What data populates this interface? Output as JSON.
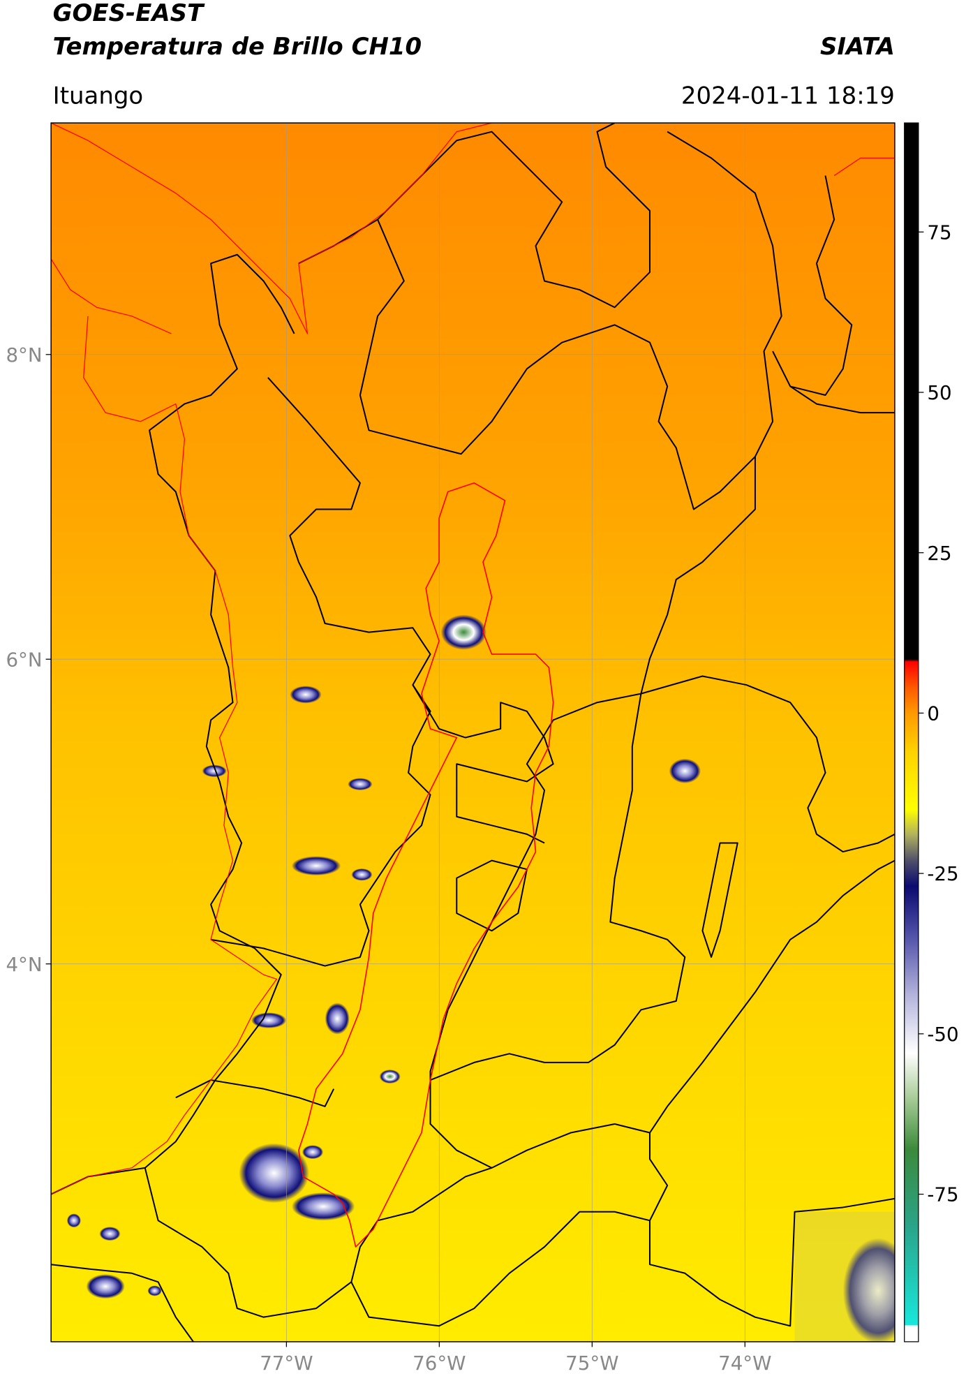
{
  "header": {
    "source": "GOES-EAST",
    "product": "Temperatura de Brillo CH10",
    "agency": "SIATA",
    "region": "Ituango",
    "timestamp": "2024-01-11 18:19"
  },
  "map": {
    "lonlim": [
      -78.54,
      -73.02
    ],
    "latlim": [
      1.52,
      9.52
    ],
    "lat_ticks": [
      {
        "value": 8,
        "label": "8°N"
      },
      {
        "value": 6,
        "label": "6°N"
      },
      {
        "value": 4,
        "label": "4°N"
      }
    ],
    "lon_ticks": [
      {
        "value": -77,
        "label": "77°W"
      },
      {
        "value": -76,
        "label": "76°W"
      },
      {
        "value": -75,
        "label": "75°W"
      },
      {
        "value": -74,
        "label": "74°W"
      }
    ],
    "grid": true,
    "grid_color": "#9a9a9a",
    "border_color": "#000000",
    "basin_color": "#ff0000"
  },
  "colorbar": {
    "clim": [
      -98,
      92
    ],
    "ticks": [
      75,
      50,
      25,
      0,
      -25,
      -50,
      -75
    ],
    "colormap": [
      {
        "value": -98,
        "color": "#ffffff"
      },
      {
        "value": -95.5,
        "color": "#ffffff"
      },
      {
        "value": -95.4,
        "color": "#18e8dc"
      },
      {
        "value": -80,
        "color": "#2aa48a"
      },
      {
        "value": -68,
        "color": "#3c8a3c"
      },
      {
        "value": -60,
        "color": "#a8cc98"
      },
      {
        "value": -53,
        "color": "#ffffff"
      },
      {
        "value": -44,
        "color": "#b4b4dc"
      },
      {
        "value": -35,
        "color": "#5454aa"
      },
      {
        "value": -27,
        "color": "#0a0a70"
      },
      {
        "value": -23,
        "color": "#50506a"
      },
      {
        "value": -19,
        "color": "#b0b060"
      },
      {
        "value": -15,
        "color": "#ffff00"
      },
      {
        "value": -6,
        "color": "#ffd200"
      },
      {
        "value": 0,
        "color": "#ff9a00"
      },
      {
        "value": 4,
        "color": "#ff5a00"
      },
      {
        "value": 8,
        "color": "#ff0000"
      },
      {
        "value": 8.4,
        "color": "#000000"
      },
      {
        "value": 92,
        "color": "#000000"
      }
    ]
  }
}
